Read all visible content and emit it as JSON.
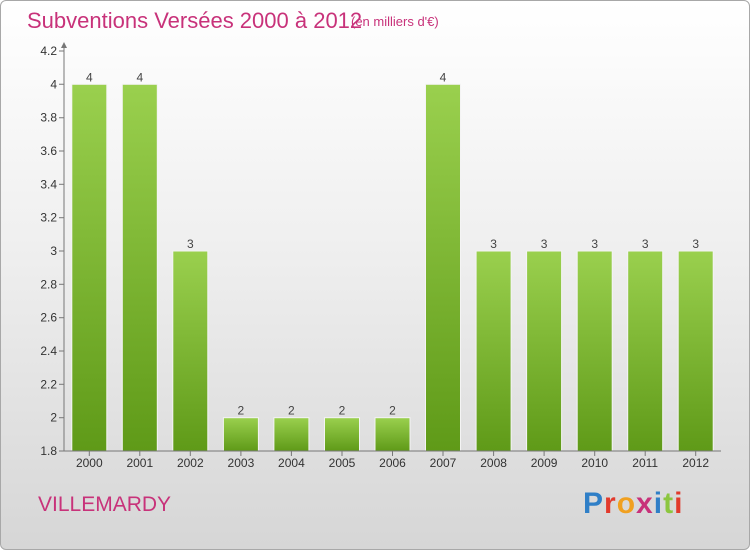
{
  "header": {
    "title": "Subventions Versées 2000 à 2012",
    "unit": "(en milliers d'€)"
  },
  "footer": {
    "commune": "VILLEMARDY",
    "logo_text": "Proxiti"
  },
  "colors": {
    "accent": "#c8327a",
    "bar_top": "#9ad04e",
    "bar_bottom": "#5f9a18",
    "logo": [
      "#2f7fc7",
      "#e23a2c",
      "#f0a020",
      "#c8327a",
      "#2f7fc7",
      "#8cc63f",
      "#e23a2c"
    ]
  },
  "chart_data": {
    "type": "bar",
    "title": "Subventions Versées 2000 à 2012",
    "categories": [
      "2000",
      "2001",
      "2002",
      "2003",
      "2004",
      "2005",
      "2006",
      "2007",
      "2008",
      "2009",
      "2010",
      "2011",
      "2012"
    ],
    "values": [
      4,
      4,
      3,
      2,
      2,
      2,
      2,
      4,
      3,
      3,
      3,
      3,
      3
    ],
    "data_labels": [
      "4",
      "4",
      "3",
      "2",
      "2",
      "2",
      "2",
      "4",
      "3",
      "3",
      "3",
      "3",
      "3"
    ],
    "ylim": [
      1.8,
      4.2
    ],
    "yticks": [
      1.8,
      2,
      2.2,
      2.4,
      2.6,
      2.8,
      3,
      3.2,
      3.4,
      3.6,
      3.8,
      4,
      4.2
    ],
    "ytick_labels": [
      "1.8",
      "2",
      "2.2",
      "2.4",
      "2.6",
      "2.8",
      "3",
      "3.2",
      "3.4",
      "3.6",
      "3.8",
      "4",
      "4.2"
    ],
    "xlabel": "",
    "ylabel": "",
    "grid": false
  }
}
